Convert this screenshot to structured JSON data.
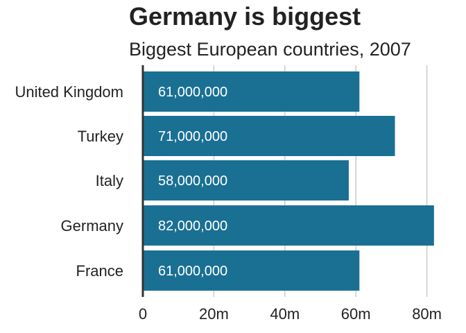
{
  "chart_data": {
    "type": "bar",
    "orientation": "horizontal",
    "title": "Germany is biggest",
    "subtitle": "Biggest European countries, 2007",
    "categories": [
      "United Kingdom",
      "Turkey",
      "Italy",
      "Germany",
      "France"
    ],
    "values": [
      61000000,
      71000000,
      58000000,
      82000000,
      61000000
    ],
    "data_labels": [
      "61,000,000",
      "71,000,000",
      "58,000,000",
      "82,000,000",
      "61,000,000"
    ],
    "x_ticks": [
      0,
      20000000,
      40000000,
      60000000,
      80000000
    ],
    "x_tick_labels": [
      "0",
      "20m",
      "40m",
      "60m",
      "80m"
    ],
    "xlim": [
      0,
      82000000
    ],
    "xlabel": "",
    "ylabel": "",
    "grid": "vertical",
    "legend": "none",
    "bar_color": "#1a7093"
  }
}
